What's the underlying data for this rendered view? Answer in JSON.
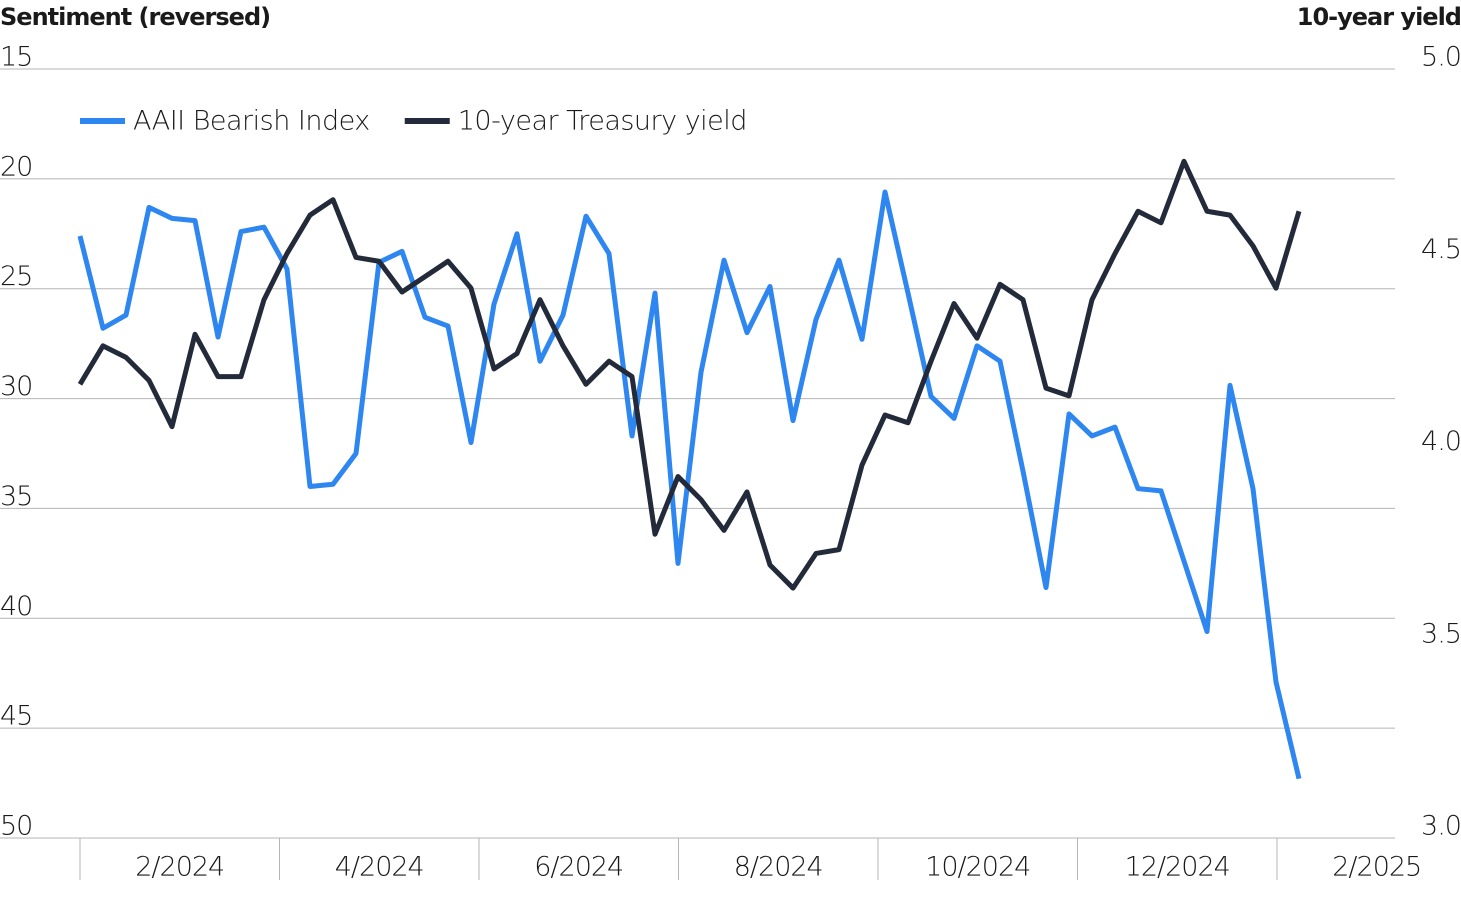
{
  "chart_data": {
    "type": "line",
    "y_label": "Sentiment (reversed)",
    "y2_label": "10-year yield",
    "ylim": [
      15,
      50
    ],
    "yticks": [
      15,
      20,
      25,
      30,
      35,
      40,
      45,
      50
    ],
    "y_reversed": true,
    "y2lim": [
      3,
      5
    ],
    "y2ticks": [
      {
        "value": 5,
        "label": "5.0"
      },
      {
        "value": 4.5,
        "label": "4.5"
      },
      {
        "value": 4,
        "label": "4.0"
      },
      {
        "value": 3.5,
        "label": "3.5"
      },
      {
        "value": 3,
        "label": "3.0"
      }
    ],
    "x_labels": [
      "2/2024",
      "4/2024",
      "6/2024",
      "8/2024",
      "10/2024",
      "12/2024",
      "2/2025"
    ],
    "grid": true,
    "legend": "top-left",
    "series": [
      {
        "name": "AAII Bearish Index",
        "color": "#2e86f0",
        "axis": "y",
        "values": [
          22.6,
          26.8,
          26.2,
          21.3,
          21.8,
          21.9,
          27.2,
          22.4,
          22.2,
          24.1,
          34.0,
          33.9,
          32.5,
          23.8,
          23.3,
          26.3,
          26.7,
          32.0,
          25.7,
          22.5,
          28.3,
          26.2,
          21.7,
          23.4,
          31.7,
          25.2,
          37.5,
          28.8,
          23.7,
          27.0,
          24.9,
          31.0,
          26.4,
          23.7,
          27.3,
          20.6,
          25.2,
          29.9,
          30.9,
          27.6,
          28.3,
          33.3,
          38.6,
          30.7,
          31.7,
          31.3,
          34.1,
          34.2,
          37.4,
          40.6,
          29.4,
          34.1,
          42.9,
          47.3
        ]
      },
      {
        "name": "10-year Treasury yield",
        "color": "#232a3a",
        "axis": "y2",
        "values": [
          4.18,
          4.28,
          4.25,
          4.19,
          4.07,
          4.31,
          4.2,
          4.2,
          4.4,
          4.52,
          4.62,
          4.66,
          4.51,
          4.5,
          4.42,
          4.46,
          4.5,
          4.43,
          4.22,
          4.26,
          4.4,
          4.28,
          4.18,
          4.24,
          4.2,
          3.79,
          3.94,
          3.88,
          3.8,
          3.9,
          3.71,
          3.65,
          3.74,
          3.75,
          3.97,
          4.1,
          4.08,
          4.24,
          4.39,
          4.3,
          4.44,
          4.4,
          4.17,
          4.15,
          4.4,
          4.52,
          4.63,
          4.6,
          4.76,
          4.63,
          4.62,
          4.54,
          4.43,
          4.63
        ]
      }
    ]
  }
}
